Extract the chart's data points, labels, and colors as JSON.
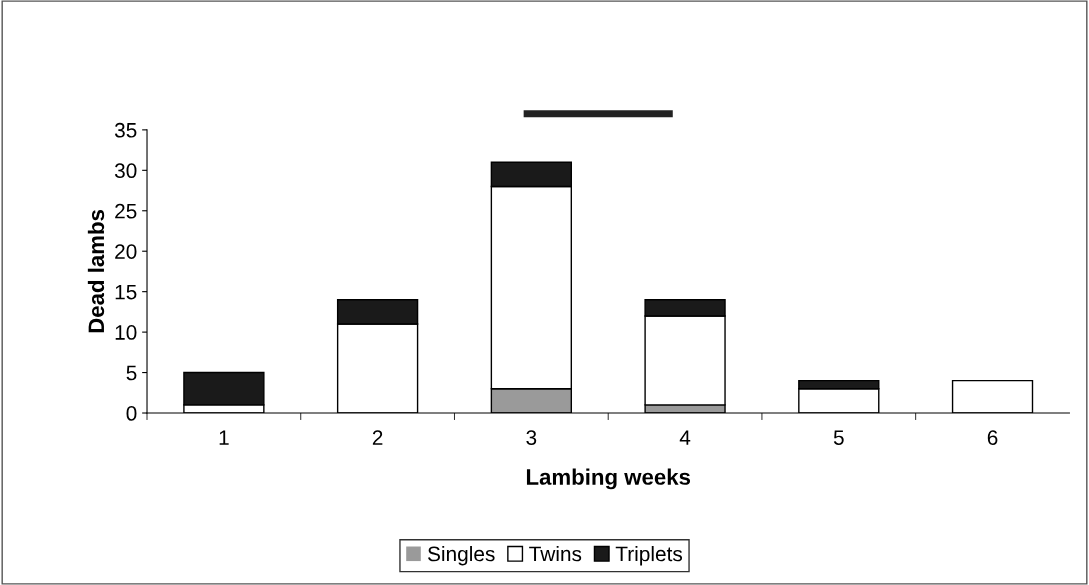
{
  "chart_data": {
    "type": "bar",
    "stacked": true,
    "xlabel": "Lambing weeks",
    "ylabel": "Dead lambs",
    "categories": [
      "1",
      "2",
      "3",
      "4",
      "5",
      "6"
    ],
    "series": [
      {
        "name": "Singles",
        "color": "#9a9a9a",
        "values": [
          0,
          0,
          3,
          1,
          0,
          0
        ]
      },
      {
        "name": "Twins",
        "color": "#ffffff",
        "values": [
          1,
          11,
          25,
          11,
          3,
          4
        ]
      },
      {
        "name": "Triplets",
        "color": "#1a1a1a",
        "values": [
          4,
          3,
          3,
          2,
          1,
          0
        ]
      }
    ],
    "ylim": [
      0,
      35
    ],
    "yticks": [
      0,
      5,
      10,
      15,
      20,
      25,
      30,
      35
    ],
    "grid": false,
    "legend": "bottom"
  }
}
